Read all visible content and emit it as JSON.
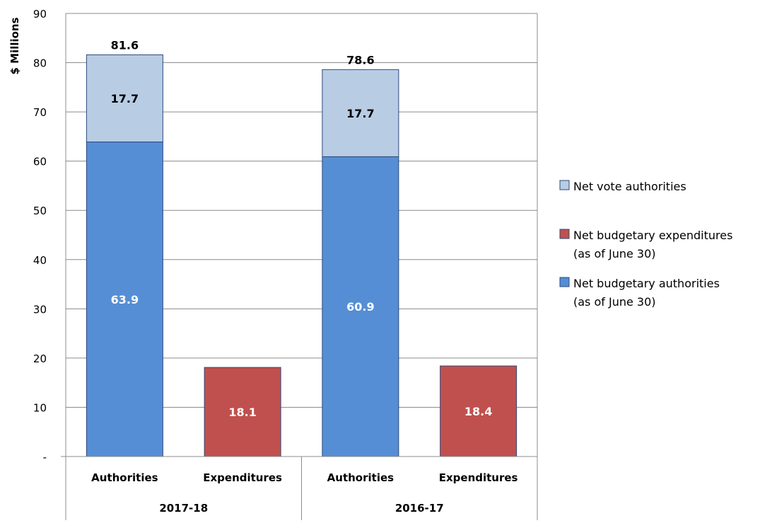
{
  "chart_data": {
    "type": "bar",
    "stacked": true,
    "ylabel": "$ Millions",
    "ylim": [
      0,
      90
    ],
    "yticks": [
      0,
      10,
      20,
      30,
      40,
      50,
      60,
      70,
      80,
      90
    ],
    "ytick_labels": [
      "-",
      "10",
      "20",
      "30",
      "40",
      "50",
      "60",
      "70",
      "80",
      "90"
    ],
    "groups": [
      {
        "label": "2017-18",
        "bars": [
          {
            "category": "Authorities",
            "segments": [
              {
                "series": "Net budgetary authorities (as of June 30)",
                "value": 63.9,
                "label": "63.9"
              },
              {
                "series": "Net vote authorities",
                "value": 17.7,
                "label": "17.7"
              }
            ],
            "total_label": "81.6"
          },
          {
            "category": "Expenditures",
            "segments": [
              {
                "series": "Net budgetary expenditures (as of June 30)",
                "value": 18.1,
                "label": "18.1"
              }
            ],
            "total_label": ""
          }
        ]
      },
      {
        "label": "2016-17",
        "bars": [
          {
            "category": "Authorities",
            "segments": [
              {
                "series": "Net budgetary authorities (as of June 30)",
                "value": 60.9,
                "label": "60.9"
              },
              {
                "series": "Net vote authorities",
                "value": 17.7,
                "label": "17.7"
              }
            ],
            "total_label": "78.6"
          },
          {
            "category": "Expenditures",
            "segments": [
              {
                "series": "Net budgetary expenditures (as of June 30)",
                "value": 18.4,
                "label": "18.4"
              }
            ],
            "total_label": ""
          }
        ]
      }
    ],
    "legend": [
      {
        "lines": [
          "Net vote authorities"
        ],
        "color": "#b8cce4"
      },
      {
        "lines": [
          "Net budgetary expenditures",
          "(as of June 30)"
        ],
        "color": "#c0504d"
      },
      {
        "lines": [
          "Net budgetary authorities",
          "(as of June 30)"
        ],
        "color": "#558ed5"
      }
    ],
    "series_colors": {
      "Net vote authorities": "#b8cce4",
      "Net budgetary expenditures (as of June 30)": "#c0504d",
      "Net budgetary authorities (as of June 30)": "#558ed5"
    },
    "legend_position": "right",
    "grid": true
  }
}
